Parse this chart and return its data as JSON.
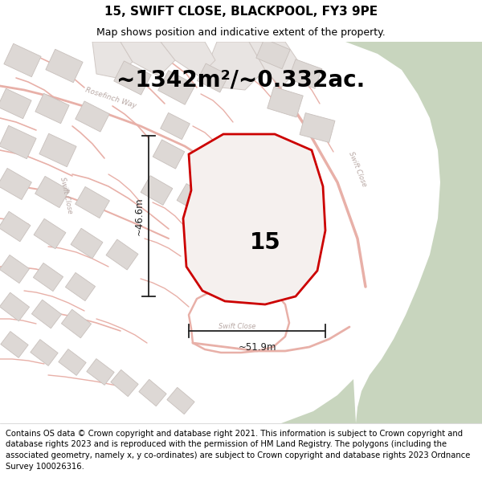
{
  "title": "15, SWIFT CLOSE, BLACKPOOL, FY3 9PE",
  "subtitle": "Map shows position and indicative extent of the property.",
  "area_text": "~1342m²/~0.332ac.",
  "dim_width": "~51.9m",
  "dim_height": "~46.6m",
  "property_number": "15",
  "footer": "Contains OS data © Crown copyright and database right 2021. This information is subject to Crown copyright and database rights 2023 and is reproduced with the permission of HM Land Registry. The polygons (including the associated geometry, namely x, y co-ordinates) are subject to Crown copyright and database rights 2023 Ordnance Survey 100026316.",
  "map_bg": "#f5f0ee",
  "green_color": "#c8d5be",
  "road_outline_color": "#e8b0a8",
  "road_fill_color": "#f5f0ee",
  "building_color": "#ddd8d5",
  "building_outline": "#c8c0bc",
  "block_fill": "#e8e4e2",
  "block_outline": "#d0c8c4",
  "plot_outline_color": "#cc0000",
  "plot_fill_color": "#f5f0ee",
  "dim_color": "#222222",
  "street_label_color": "#b8a8a4",
  "title_fontsize": 11,
  "subtitle_fontsize": 9,
  "area_fontsize": 20,
  "number_fontsize": 20,
  "footer_fontsize": 7.2
}
